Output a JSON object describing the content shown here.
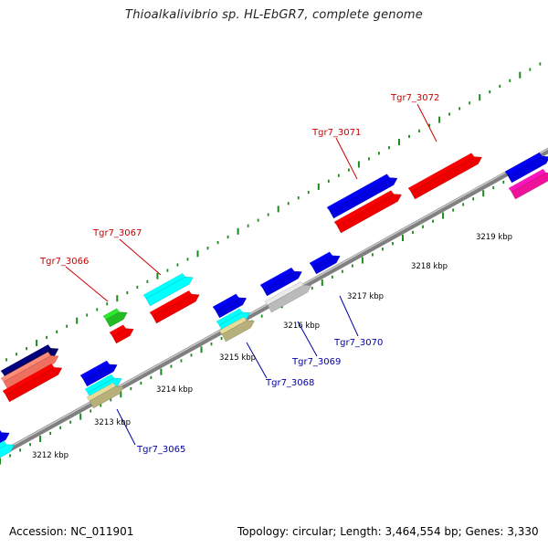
{
  "title": "Thioalkalivibrio sp. HL-EbGR7, complete genome",
  "accession": "Accession: NC_011901",
  "topology": "Topology: circular; Length: 3,464,554 bp; Genes: 3,330",
  "ticks": [
    "3212 kbp",
    "3213 kbp",
    "3214 kbp",
    "3215 kbp",
    "3216 kbp",
    "3217 kbp",
    "3218 kbp",
    "3219 kbp"
  ],
  "labels": {
    "forward": [
      "Tgr7_3066",
      "Tgr7_3067",
      "Tgr7_3071",
      "Tgr7_3072"
    ],
    "reverse": [
      "Tgr7_3065",
      "Tgr7_3068",
      "Tgr7_3069",
      "Tgr7_3070"
    ]
  },
  "colors": {
    "forward_label": "#cc0000",
    "reverse_label": "#0000aa",
    "backbone": "#808080",
    "tick": "#1a8a1a",
    "blue": "#0000e0",
    "red": "#ee0000",
    "cyan": "#00ffff",
    "green": "#22bb22",
    "gray": "#bbbbbb",
    "tan": "#b8b07a",
    "navy": "#000066",
    "salmon": "#f07060",
    "magenta": "#ee1199"
  }
}
